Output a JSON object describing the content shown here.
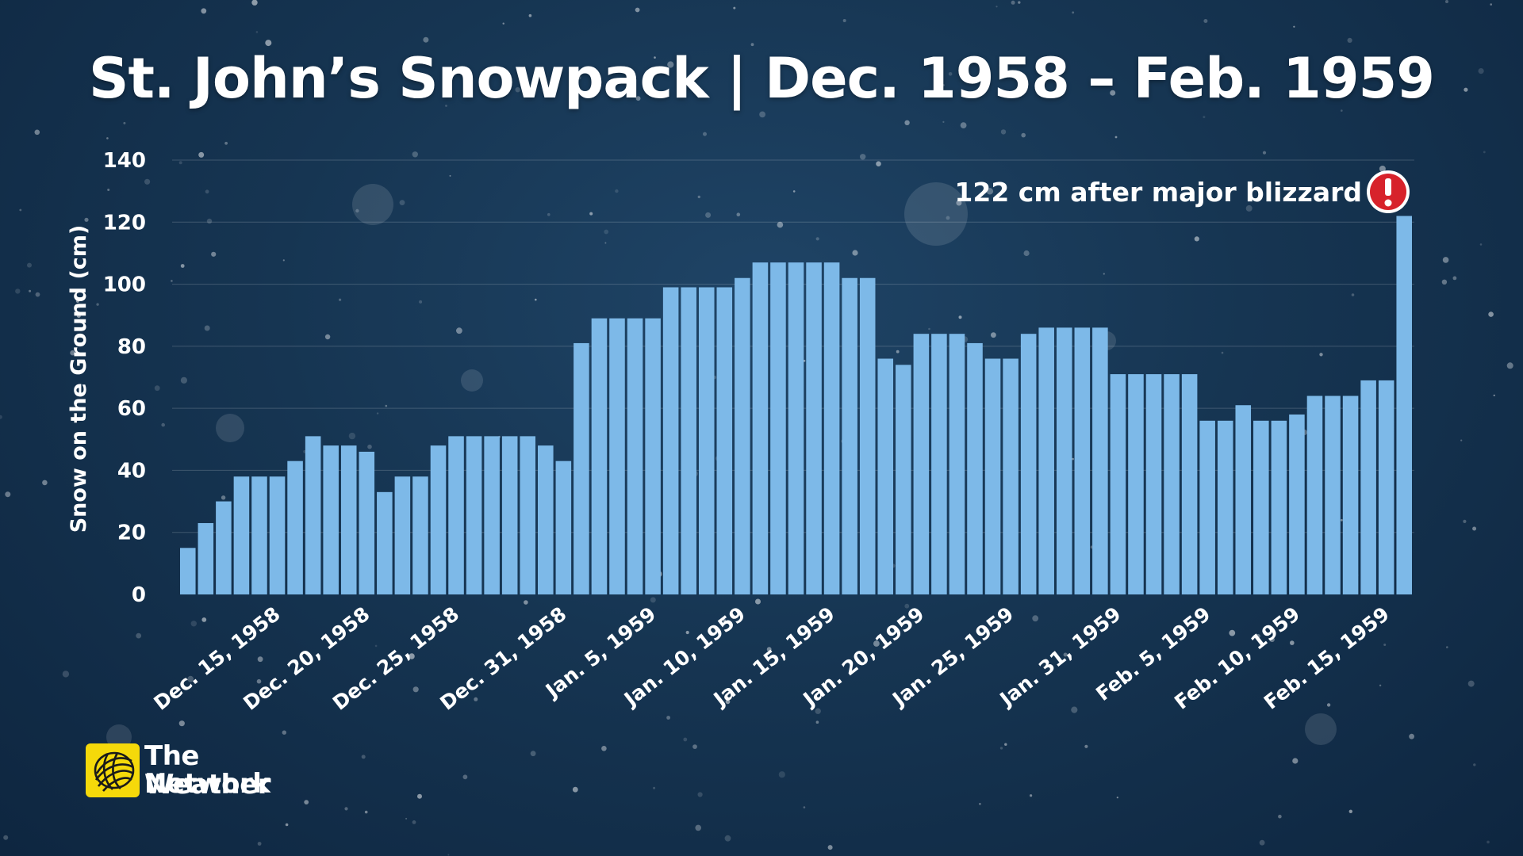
{
  "title": "St. John’s Snowpack | Dec. 1958 – Feb. 1959",
  "logo": {
    "line1": "The Weather",
    "line2": "Network"
  },
  "chart_data": {
    "type": "bar",
    "title": "St. John’s Snowpack | Dec. 1958 – Feb. 1959",
    "xlabel": "",
    "ylabel": "Snow on the Ground (cm)",
    "ylim": [
      0,
      140
    ],
    "yticks": [
      0,
      20,
      40,
      60,
      80,
      100,
      120,
      140
    ],
    "grid": true,
    "legend": "none",
    "bar_color": "#7db9e8",
    "values": [
      15,
      23,
      30,
      38,
      38,
      38,
      43,
      51,
      48,
      48,
      46,
      33,
      38,
      38,
      48,
      51,
      51,
      51,
      51,
      51,
      48,
      43,
      81,
      89,
      89,
      89,
      89,
      99,
      99,
      99,
      99,
      102,
      107,
      107,
      107,
      107,
      107,
      102,
      102,
      76,
      74,
      84,
      84,
      84,
      81,
      76,
      76,
      84,
      86,
      86,
      86,
      86,
      71,
      71,
      71,
      71,
      71,
      56,
      56,
      61,
      56,
      56,
      58,
      64,
      64,
      64,
      69,
      69,
      122
    ],
    "x_tick_labels": [
      {
        "index": 5,
        "label": "Dec. 15, 1958"
      },
      {
        "index": 10,
        "label": "Dec. 20, 1958"
      },
      {
        "index": 15,
        "label": "Dec. 25, 1958"
      },
      {
        "index": 21,
        "label": "Dec. 31, 1958"
      },
      {
        "index": 26,
        "label": "Jan. 5, 1959"
      },
      {
        "index": 31,
        "label": "Jan. 10, 1959"
      },
      {
        "index": 36,
        "label": "Jan. 15, 1959"
      },
      {
        "index": 41,
        "label": "Jan. 20, 1959"
      },
      {
        "index": 46,
        "label": "Jan. 25, 1959"
      },
      {
        "index": 52,
        "label": "Jan. 31, 1959"
      },
      {
        "index": 57,
        "label": "Feb. 5, 1959"
      },
      {
        "index": 62,
        "label": "Feb. 10, 1959"
      },
      {
        "index": 67,
        "label": "Feb. 15, 1959"
      }
    ],
    "annotation": {
      "index": 68,
      "text": "122 cm after major blizzard",
      "icon": "exclamation-icon"
    }
  }
}
